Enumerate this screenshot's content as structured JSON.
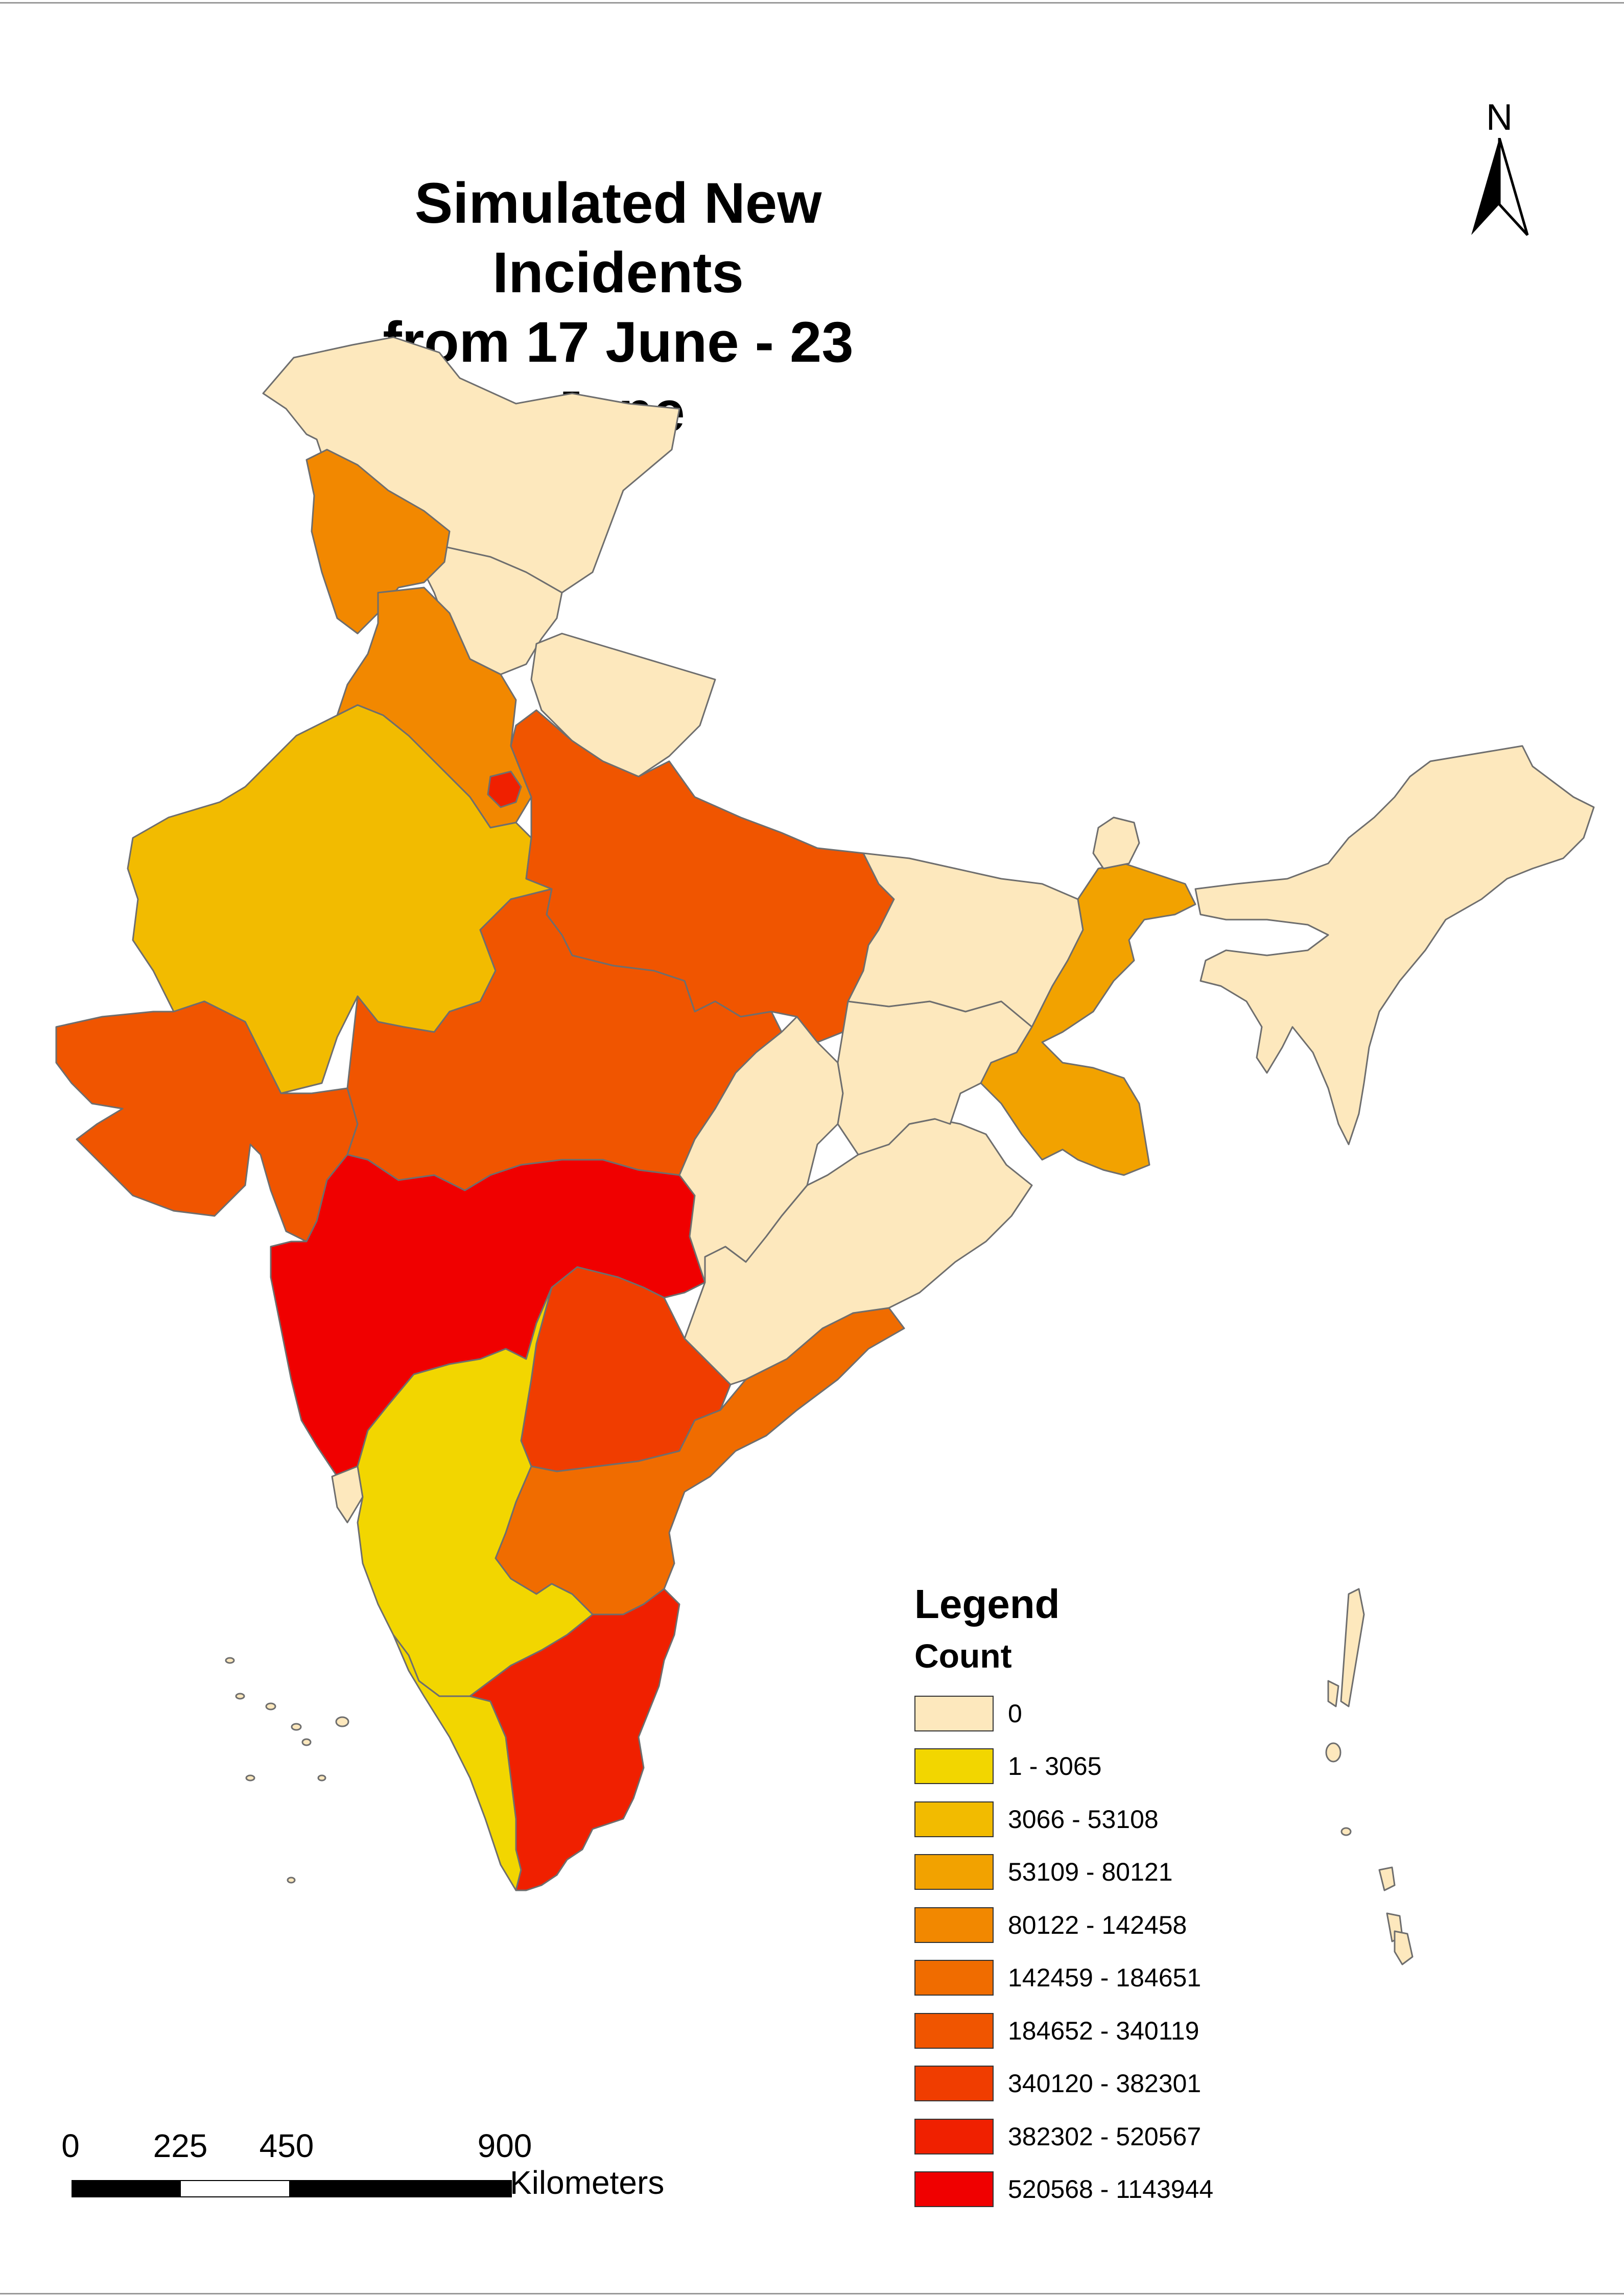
{
  "title_line1": "Simulated New Incidents",
  "title_line2": "from 17 June - 23 June",
  "north_arrow": {
    "label": "N",
    "icon": "north-arrow-icon"
  },
  "legend": {
    "title": "Legend",
    "field": "Count",
    "classes": [
      {
        "label": "0",
        "color": "#fde8bd"
      },
      {
        "label": "1 - 3065",
        "color": "#f2d600"
      },
      {
        "label": "3066 - 53108",
        "color": "#f2bb00"
      },
      {
        "label": "53109 - 80121",
        "color": "#f2a200"
      },
      {
        "label": "80122 - 142458",
        "color": "#f28800"
      },
      {
        "label": "142459 - 184651",
        "color": "#f06c00"
      },
      {
        "label": "184652 - 340119",
        "color": "#f05500"
      },
      {
        "label": "340120 - 382301",
        "color": "#f03d00"
      },
      {
        "label": "382302 - 520567",
        "color": "#f02000"
      },
      {
        "label": "520568 - 1143944",
        "color": "#f00000"
      }
    ]
  },
  "scale_bar": {
    "ticks": [
      "0",
      "225",
      "450",
      "900"
    ],
    "tick_values_km": [
      0,
      225,
      450,
      900
    ],
    "units": "Kilometers"
  },
  "map_regions": [
    {
      "name": "jammu-kashmir",
      "class": 0
    },
    {
      "name": "himachal-pradesh",
      "class": 0
    },
    {
      "name": "uttarakhand",
      "class": 0
    },
    {
      "name": "punjab",
      "class": 4
    },
    {
      "name": "haryana",
      "class": 4
    },
    {
      "name": "delhi",
      "class": 8
    },
    {
      "name": "rajasthan",
      "class": 2
    },
    {
      "name": "gujarat",
      "class": 6
    },
    {
      "name": "uttar-pradesh",
      "class": 6
    },
    {
      "name": "madhya-pradesh",
      "class": 6
    },
    {
      "name": "maharashtra",
      "class": 9
    },
    {
      "name": "bihar",
      "class": 0
    },
    {
      "name": "jharkhand",
      "class": 0
    },
    {
      "name": "chhattisgarh",
      "class": 0
    },
    {
      "name": "odisha",
      "class": 0
    },
    {
      "name": "west-bengal",
      "class": 3
    },
    {
      "name": "sikkim",
      "class": 0
    },
    {
      "name": "northeast-states",
      "class": 0
    },
    {
      "name": "telangana",
      "class": 7
    },
    {
      "name": "andhra-pradesh",
      "class": 5
    },
    {
      "name": "karnataka",
      "class": 1
    },
    {
      "name": "goa",
      "class": 0
    },
    {
      "name": "kerala",
      "class": 1
    },
    {
      "name": "tamil-nadu",
      "class": 8
    },
    {
      "name": "andaman-nicobar",
      "class": 0
    },
    {
      "name": "lakshadweep",
      "class": 0
    }
  ]
}
